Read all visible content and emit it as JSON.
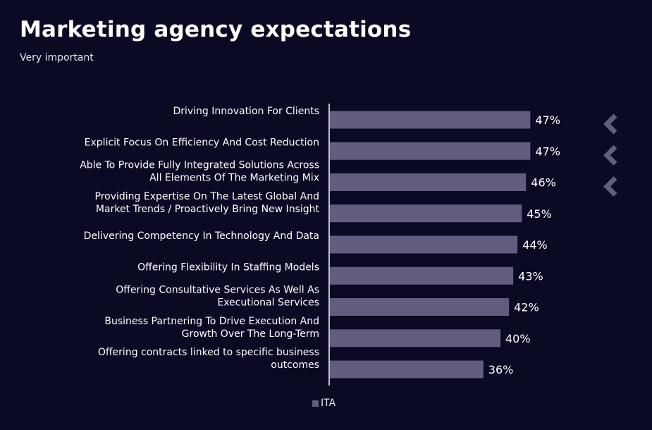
{
  "header": {
    "title": "Marketing agency expectations",
    "subtitle": "Very important"
  },
  "colors": {
    "background": "#0b0a24",
    "bar": "#605d7f",
    "axis": "#ffffff",
    "arrow": "#605d7f"
  },
  "chart_data": {
    "type": "bar",
    "orientation": "horizontal",
    "categories": [
      [
        "Driving Innovation For Clients"
      ],
      [
        "Explicit Focus On Efficiency And Cost Reduction"
      ],
      [
        "Able To Provide Fully Integrated Solutions Across",
        "All Elements Of The Marketing Mix"
      ],
      [
        "Providing Expertise On The Latest Global And",
        "Market Trends / Proactively Bring New Insight"
      ],
      [
        "Delivering Competency In Technology And Data"
      ],
      [
        "Offering Flexibility In Staffing Models"
      ],
      [
        "Offering Consultative Services As Well As",
        "Executional Services"
      ],
      [
        "Business Partnering To Drive Execution And",
        "Growth Over The Long-Term"
      ],
      [
        "Offering contracts linked to specific business",
        "outcomes"
      ]
    ],
    "series": [
      {
        "name": "ITA",
        "values": [
          47,
          47,
          46,
          45,
          44,
          43,
          42,
          40,
          36
        ]
      }
    ],
    "value_labels": [
      "47%",
      "47%",
      "46%",
      "45%",
      "44%",
      "43%",
      "42%",
      "40%",
      "36%"
    ],
    "xlim": [
      0,
      100
    ],
    "grid": false,
    "legend_position": "bottom",
    "highlight_arrows": [
      true,
      true,
      true,
      false,
      false,
      false,
      false,
      false,
      false
    ],
    "arrow_icon": "chevron-left-icon"
  }
}
